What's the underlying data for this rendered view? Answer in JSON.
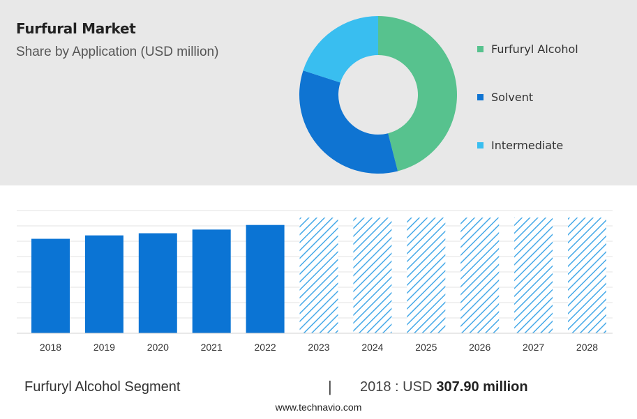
{
  "header": {
    "title": "Furfural Market",
    "subtitle": "Share by Application (USD million)"
  },
  "colors": {
    "furfuryl_alcohol": "#57c28e",
    "solvent": "#0f74d2",
    "intermediate": "#39bef0",
    "bar": "#0b74d4",
    "hatch": "#45a9e8",
    "panel_bg": "#e8e8e8"
  },
  "chart_data": [
    {
      "type": "pie",
      "donut": true,
      "legend_position": "right",
      "labels": [
        "Furfuryl Alcohol",
        "Solvent",
        "Intermediate"
      ],
      "values": [
        46,
        34,
        20
      ]
    },
    {
      "type": "bar",
      "categories": [
        "2018",
        "2019",
        "2020",
        "2021",
        "2022",
        "2023",
        "2024",
        "2025",
        "2026",
        "2027",
        "2028"
      ],
      "values": [
        307.9,
        319,
        326,
        338,
        353,
        377,
        377,
        377,
        377,
        377,
        377
      ],
      "forecast_from": "2023",
      "forecast_style": "hatched",
      "ylim": [
        0,
        400
      ],
      "grid": true
    }
  ],
  "footer": {
    "segment": "Furfuryl Alcohol Segment",
    "divider": "|",
    "value_label": "2018 : USD",
    "value": "307.90 million",
    "website": "www.technavio.com"
  }
}
